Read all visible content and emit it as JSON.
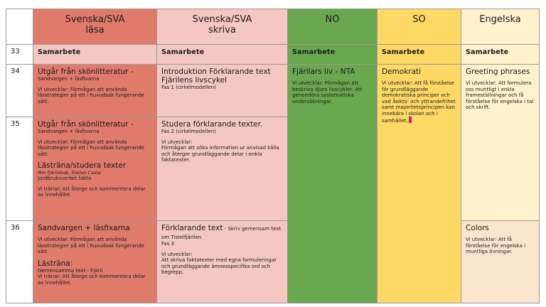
{
  "headers": {
    "col_sva_lasa": "Svenska/SVA\nläsa",
    "col_sva_skriva": "Svenska/SVA\nskriva",
    "col_no": "NO",
    "col_so": "SO",
    "col_eng": "Engelska"
  },
  "row33": {
    "week": "33",
    "c1": "Samarbete",
    "c2": "Samarbete",
    "c3": "Samarbete",
    "c4": "Samarbete",
    "c5": "Samarbete"
  },
  "row34": {
    "week": "34",
    "c1_title": "Utgår från skönlitteratur -",
    "c1_sub": "Sandvargen + läsfixarna",
    "c1_body": "Vi utvecklar: Förmågan att använda lässtrategier på ett i huvudsak fungerande sätt.",
    "c2_title1": "Introduktion Förklarande text",
    "c2_title2": "Fjärilens livscykel",
    "c2_sub": "Fas 1 (cirkelmodellen)",
    "c3_title": "Fjärilars liv - NTA",
    "c3_body": "Vi utvecklar: Förmågan att beskriva djurs livscykler. Att genomföra systematiska undersökningar.",
    "c4_title": "Demokrati",
    "c4_body": "Vi utvecklar: Att få förståelse för grundläggande demokratiska principer och vad åsikts- och yttrandefrihet samt majoritetsprincipen kan innebära i skolan och i samhället.",
    "c5_title": "Greeting phrases",
    "c5_body": "Vi utvecklar: Att formulera oss muntligt i enkla frameställningar och få förståelse för engelska i tal och skrift."
  },
  "row35": {
    "week": "35",
    "c1_title": "Utgår från skönlitteratur -",
    "c1_sub": "Sandvargen + läsfixarna",
    "c1_body": "Vi utvecklar: Förmågan att använda lässtrategier på ett i huvudsak fungerande sätt.",
    "c1_title2": "Lästräna/studera texter",
    "c1_italic": "Min fjärilsbok, Stefan Casta",
    "c1_sub2": "Jordbruksverket fakta",
    "c1_body2": "Vi tränar: Att återge och kommentera delar av innehållet",
    "c2_title": "Studera förklarande texter.",
    "c2_sub": "Fas 2 (cirkelmodellen)",
    "c2_body_head": "Vi utvecklar:",
    "c2_body": "Förmågan att söka information ur anvisad källa och återger grundläggande delar i enkla faktatexter."
  },
  "row36": {
    "week": "36",
    "c1_title": "Sandvargen + läsfixarna",
    "c1_body": "Vi utvecklar: Förmågan att använda lässtrategier på ett i huvudsak fungerande sätt.",
    "c1_title2": "Lästräna:",
    "c1_sub2": "Gemensamma text - Fjäril",
    "c1_body2": "Vi tränar: Att återge och kommentera delar av innehållet.",
    "c2_title": "Förklarande text",
    "c2_title_tail": " - Skriv gemensam text om Tistelfjärilen",
    "c2_sub": "Fas 3",
    "c2_body_head": "Vi utvecklar:",
    "c2_body": "Att skriva faktatexter med egna formuleringar och grundläggande ämnesspecifika ord och begrepp.",
    "c5_title": "Colors",
    "c5_body": "Vi utvecklar: Att få förståelse för engelska i muntliga övningar."
  }
}
